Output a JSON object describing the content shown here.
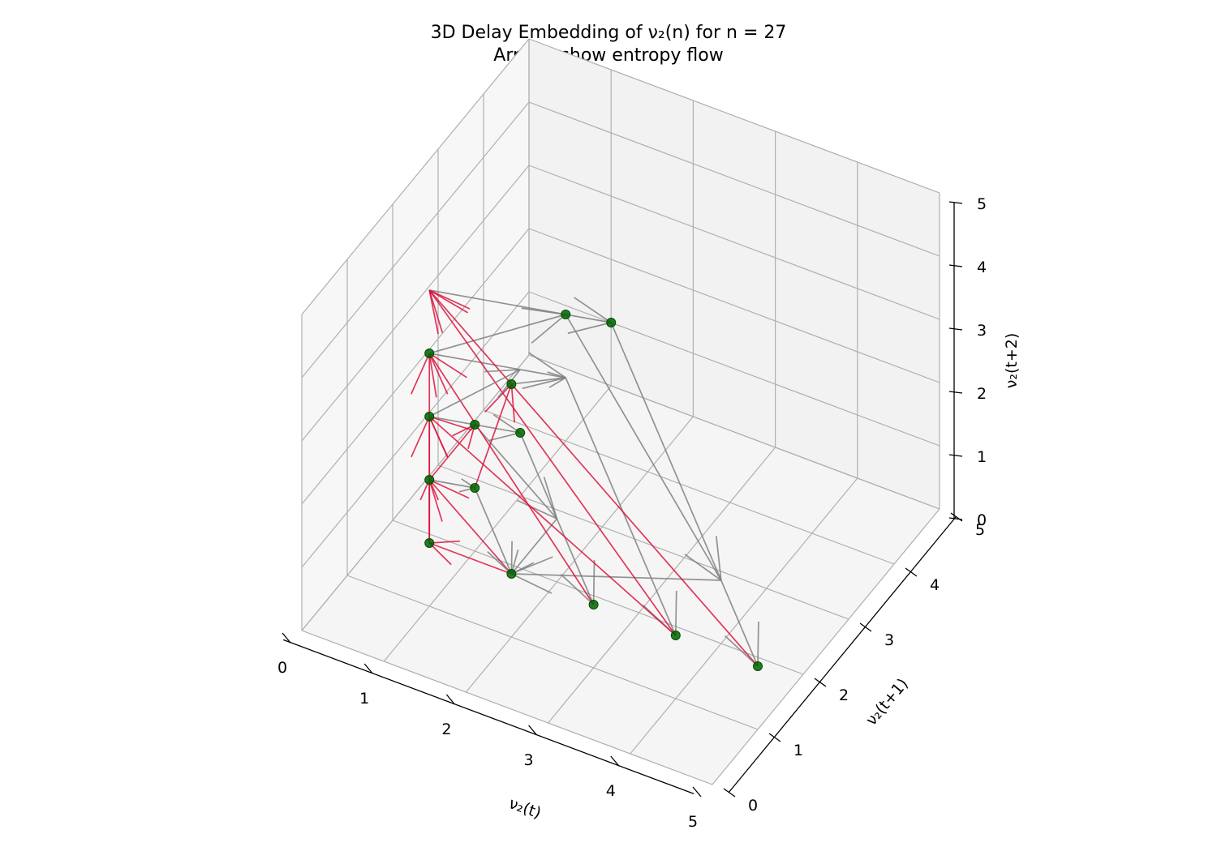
{
  "chart_data": {
    "type": "scatter",
    "title": "3D Delay Embedding of ν₂(n) for n = 27",
    "subtitle": "Arrows show entropy flow",
    "xlabel": "ν₂(t)",
    "ylabel": "ν₂(t+1)",
    "zlabel": "ν₂(t+2)",
    "xlim": [
      0,
      5
    ],
    "ylim": [
      0,
      5
    ],
    "zlim": [
      0,
      5
    ],
    "x_ticks": [
      "0",
      "1",
      "2",
      "3",
      "4",
      "5"
    ],
    "y_ticks": [
      "0",
      "1",
      "2",
      "3",
      "4",
      "5"
    ],
    "z_ticks": [
      "0",
      "1",
      "2",
      "3",
      "4",
      "5"
    ],
    "grid": true,
    "colors": {
      "point": "#006400",
      "flow_up": "#dc143c",
      "flow_down": "#808080",
      "pane": "#f2f2f2",
      "grid": "#b0b0b0"
    },
    "points": [
      {
        "x": 1,
        "y": 1,
        "z": 1
      },
      {
        "x": 1,
        "y": 1,
        "z": 2
      },
      {
        "x": 1,
        "y": 1,
        "z": 3
      },
      {
        "x": 1,
        "y": 1,
        "z": 4
      },
      {
        "x": 1,
        "y": 2,
        "z": 1
      },
      {
        "x": 1,
        "y": 2,
        "z": 2
      },
      {
        "x": 1,
        "y": 3,
        "z": 1
      },
      {
        "x": 1,
        "y": 4,
        "z": 2
      },
      {
        "x": 1,
        "y": 5,
        "z": 1
      },
      {
        "x": 2,
        "y": 1,
        "z": 1
      },
      {
        "x": 2,
        "y": 1,
        "z": 4
      },
      {
        "x": 3,
        "y": 1,
        "z": 1
      },
      {
        "x": 4,
        "y": 1,
        "z": 1
      },
      {
        "x": 5,
        "y": 1,
        "z": 1
      }
    ],
    "flows": [
      {
        "from": [
          1,
          1,
          4
        ],
        "to": [
          1,
          4,
          2
        ],
        "direction": "down"
      },
      {
        "from": [
          1,
          4,
          2
        ],
        "to": [
          4,
          2,
          1
        ],
        "direction": "down"
      },
      {
        "from": [
          4,
          2,
          1
        ],
        "to": [
          2,
          1,
          1
        ],
        "direction": "down"
      },
      {
        "from": [
          2,
          1,
          1
        ],
        "to": [
          1,
          1,
          2
        ],
        "direction": "up"
      },
      {
        "from": [
          1,
          1,
          2
        ],
        "to": [
          1,
          2,
          1
        ],
        "direction": "down"
      },
      {
        "from": [
          1,
          2,
          1
        ],
        "to": [
          2,
          1,
          1
        ],
        "direction": "down"
      },
      {
        "from": [
          2,
          1,
          1
        ],
        "to": [
          1,
          1,
          1
        ],
        "direction": "up"
      },
      {
        "from": [
          1,
          1,
          1
        ],
        "to": [
          1,
          1,
          2
        ],
        "direction": "up"
      },
      {
        "from": [
          1,
          1,
          2
        ],
        "to": [
          1,
          2,
          2
        ],
        "direction": "up"
      },
      {
        "from": [
          1,
          2,
          2
        ],
        "to": [
          2,
          2,
          1
        ],
        "direction": "down"
      },
      {
        "from": [
          2,
          2,
          1
        ],
        "to": [
          2,
          1,
          1
        ],
        "direction": "down"
      },
      {
        "from": [
          1,
          1,
          1
        ],
        "to": [
          1,
          1,
          3
        ],
        "direction": "up"
      },
      {
        "from": [
          1,
          1,
          3
        ],
        "to": [
          1,
          3,
          1
        ],
        "direction": "down"
      },
      {
        "from": [
          1,
          3,
          1
        ],
        "to": [
          3,
          1,
          1
        ],
        "direction": "down"
      },
      {
        "from": [
          3,
          1,
          1
        ],
        "to": [
          1,
          1,
          4
        ],
        "direction": "up"
      },
      {
        "from": [
          1,
          1,
          1
        ],
        "to": [
          1,
          1,
          4
        ],
        "direction": "up"
      },
      {
        "from": [
          1,
          1,
          4
        ],
        "to": [
          1,
          4,
          1
        ],
        "direction": "down"
      },
      {
        "from": [
          1,
          4,
          1
        ],
        "to": [
          4,
          1,
          1
        ],
        "direction": "down"
      },
      {
        "from": [
          4,
          1,
          1
        ],
        "to": [
          1,
          1,
          5
        ],
        "direction": "up"
      },
      {
        "from": [
          1,
          1,
          5
        ],
        "to": [
          1,
          5,
          1
        ],
        "direction": "down"
      },
      {
        "from": [
          1,
          5,
          1
        ],
        "to": [
          5,
          1,
          1
        ],
        "direction": "down"
      },
      {
        "from": [
          5,
          1,
          1
        ],
        "to": [
          1,
          1,
          5
        ],
        "direction": "up"
      },
      {
        "from": [
          1,
          2,
          1
        ],
        "to": [
          2,
          1,
          4
        ],
        "direction": "up"
      },
      {
        "from": [
          2,
          1,
          4
        ],
        "to": [
          1,
          4,
          1
        ],
        "direction": "down"
      },
      {
        "from": [
          4,
          1,
          1
        ],
        "to": [
          1,
          1,
          3
        ],
        "direction": "up"
      },
      {
        "from": [
          1,
          1,
          3
        ],
        "to": [
          1,
          3,
          2
        ],
        "direction": "down"
      }
    ]
  }
}
